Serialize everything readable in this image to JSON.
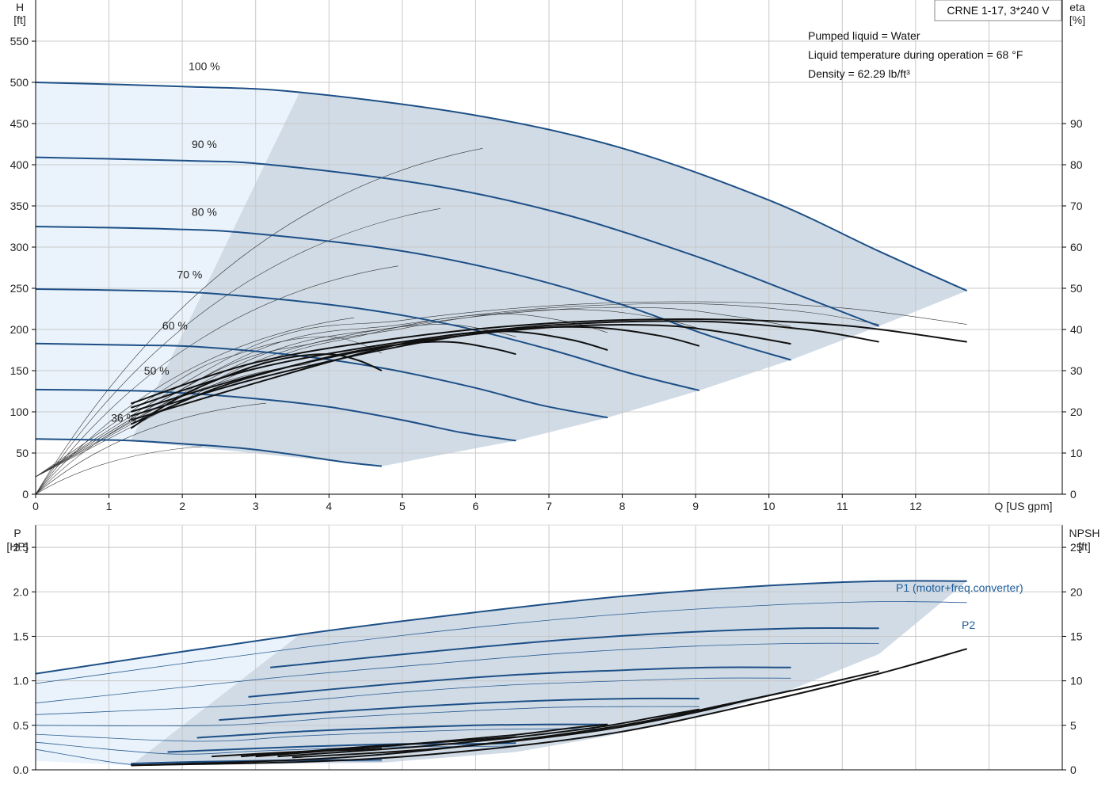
{
  "title": "CRNE 1-17, 3*240 V",
  "info_lines": [
    "Pumped liquid = Water",
    "Liquid temperature during operation = 68 °F",
    "Density = 62.29 lb/ft³"
  ],
  "colors": {
    "envelope_fill": "#d0dbe6",
    "light_fill": "#eaf3fb",
    "curve_blue": "#1d4f86",
    "eta_black": "#111111",
    "grid": "#c8c8c8"
  },
  "chart_data": [
    {
      "type": "line",
      "name": "performance",
      "xlabel": "Q [US gpm]",
      "ylabel_left": {
        "name": "H",
        "unit": "[ft]"
      },
      "ylabel_right": {
        "name": "eta",
        "unit": "[%]"
      },
      "xlim": [
        0,
        14
      ],
      "ylim_left": [
        0,
        600
      ],
      "ylim_right": [
        0,
        120
      ],
      "x_ticks": [
        "0",
        "1",
        "2",
        "3",
        "4",
        "5",
        "6",
        "7",
        "8",
        "9",
        "10",
        "11",
        "12"
      ],
      "y_ticks_left": [
        "0",
        "50",
        "100",
        "150",
        "200",
        "250",
        "300",
        "350",
        "400",
        "450",
        "500",
        "550"
      ],
      "y_ticks_right": [
        "0",
        "10",
        "20",
        "30",
        "40",
        "50",
        "60",
        "70",
        "80",
        "90"
      ],
      "grid": true,
      "speed_labels": [
        "100 %",
        "90 %",
        "80 %",
        "70 %",
        "60 %",
        "50 %",
        "36 %"
      ],
      "head_curves": [
        {
          "label": "100 %",
          "x": [
            0,
            2,
            3.6,
            6,
            8,
            10,
            11.5,
            12.7
          ],
          "y": [
            500,
            495,
            488,
            460,
            420,
            357,
            295,
            247
          ]
        },
        {
          "label": "90 %",
          "x": [
            0,
            2,
            3.2,
            5.4,
            7.2,
            9,
            10.4,
            11.5
          ],
          "y": [
            409,
            405,
            400,
            375,
            340,
            289,
            242,
            204
          ]
        },
        {
          "label": "80 %",
          "x": [
            0,
            1.8,
            2.9,
            4.8,
            6.4,
            8,
            9.2,
            10.3
          ],
          "y": [
            325,
            322,
            317,
            298,
            270,
            230,
            192,
            163
          ]
        },
        {
          "label": "70 %",
          "x": [
            0,
            1.5,
            2.5,
            4.2,
            5.6,
            7,
            8.1,
            9.05
          ],
          "y": [
            249,
            247,
            243,
            228,
            207,
            176,
            147,
            126
          ]
        },
        {
          "label": "60 %",
          "x": [
            0,
            1.3,
            2.2,
            3.6,
            4.8,
            6,
            6.9,
            7.8
          ],
          "y": [
            183,
            181,
            179,
            168,
            152,
            129,
            108,
            93
          ]
        },
        {
          "label": "50 %",
          "x": [
            0,
            1.1,
            1.8,
            3,
            4,
            5,
            5.8,
            6.55
          ],
          "y": [
            127,
            126,
            124,
            116,
            106,
            90,
            75,
            65
          ]
        },
        {
          "label": "36 %",
          "x": [
            0,
            0.8,
            1.3,
            2.2,
            2.9,
            3.6,
            4.2,
            4.72
          ],
          "y": [
            67,
            66,
            65,
            60,
            55,
            47,
            39,
            34
          ]
        }
      ],
      "efficiency_curves": [
        {
          "label": "100 %",
          "x": [
            1.3,
            3,
            5,
            7,
            9,
            11,
            12.7
          ],
          "y": [
            22,
            32,
            38,
            41.5,
            42.5,
            41,
            37
          ]
        },
        {
          "label": "90 %",
          "x": [
            1.3,
            3,
            5,
            7,
            9,
            10.5,
            11.5
          ],
          "y": [
            21,
            30.5,
            37,
            41,
            42,
            40,
            37
          ]
        },
        {
          "label": "80 %",
          "x": [
            1.3,
            3,
            5,
            7,
            8.5,
            9.5,
            10.3
          ],
          "y": [
            20,
            29,
            36.5,
            40.5,
            41,
            39,
            36.5
          ]
        },
        {
          "label": "70 %",
          "x": [
            1.3,
            3,
            5,
            6.5,
            7.6,
            8.5,
            9.05
          ],
          "y": [
            19,
            28,
            36,
            40,
            40.5,
            38.5,
            36
          ]
        },
        {
          "label": "60 %",
          "x": [
            1.3,
            3,
            4.5,
            5.6,
            6.5,
            7.3,
            7.8
          ],
          "y": [
            18,
            27,
            34.5,
            38.5,
            39.5,
            37.5,
            35
          ]
        },
        {
          "label": "50 %",
          "x": [
            1.3,
            2.5,
            3.8,
            4.8,
            5.6,
            6.2,
            6.55
          ],
          "y": [
            17,
            26,
            32.5,
            36,
            37,
            35.5,
            34
          ]
        },
        {
          "label": "36 %",
          "x": [
            1.3,
            2,
            2.8,
            3.4,
            4,
            4.4,
            4.72
          ],
          "y": [
            16,
            24,
            30,
            33,
            34,
            32.5,
            30
          ]
        }
      ]
    },
    {
      "type": "line",
      "name": "power",
      "xlim": [
        0,
        14
      ],
      "ylabel_left": {
        "name": "P",
        "unit": "[HP]"
      },
      "ylabel_right": {
        "name": "NPSH",
        "unit": "[ft]"
      },
      "ylim_left": [
        0,
        2.75
      ],
      "ylim_right": [
        0,
        27.5
      ],
      "y_ticks_left": [
        "0.0",
        "0.5",
        "1.0",
        "1.5",
        "2.0",
        "2.5"
      ],
      "y_ticks_right": [
        "0",
        "5",
        "10",
        "15",
        "20",
        "25"
      ],
      "grid": true,
      "legend": [
        "P1 (motor+freq.converter)",
        "P2"
      ],
      "p1_curves": [
        {
          "x": [
            0,
            3.6,
            6,
            8,
            10,
            11.5,
            12.7
          ],
          "y": [
            1.08,
            1.52,
            1.77,
            1.95,
            2.07,
            2.12,
            2.12
          ]
        },
        {
          "x": [
            3.2,
            5.4,
            7.2,
            9,
            10.4,
            11.5
          ],
          "y": [
            1.15,
            1.33,
            1.46,
            1.55,
            1.59,
            1.59
          ]
        },
        {
          "x": [
            2.9,
            4.8,
            6.4,
            8,
            9.2,
            10.3
          ],
          "y": [
            0.82,
            0.96,
            1.06,
            1.12,
            1.15,
            1.15
          ]
        },
        {
          "x": [
            2.5,
            4.2,
            5.6,
            7,
            8.1,
            9.05
          ],
          "y": [
            0.56,
            0.66,
            0.73,
            0.78,
            0.8,
            0.8
          ]
        },
        {
          "x": [
            2.2,
            3.6,
            4.8,
            6,
            6.9,
            7.8
          ],
          "y": [
            0.36,
            0.43,
            0.47,
            0.5,
            0.51,
            0.51
          ]
        },
        {
          "x": [
            1.8,
            3,
            4,
            5,
            5.8,
            6.55
          ],
          "y": [
            0.2,
            0.24,
            0.27,
            0.29,
            0.29,
            0.3
          ]
        },
        {
          "x": [
            1.3,
            2.2,
            2.9,
            3.6,
            4.2,
            4.72
          ],
          "y": [
            0.07,
            0.09,
            0.1,
            0.11,
            0.11,
            0.12
          ]
        }
      ],
      "p2_curves": [
        {
          "x": [
            0,
            3.6,
            6,
            8,
            10,
            11.5,
            12.7
          ],
          "y": [
            0.97,
            1.37,
            1.6,
            1.75,
            1.85,
            1.89,
            1.88
          ]
        },
        {
          "x": [
            0,
            3.2,
            5.4,
            7.2,
            9,
            10.4,
            11.5
          ],
          "y": [
            0.75,
            1.03,
            1.19,
            1.31,
            1.39,
            1.42,
            1.42
          ]
        },
        {
          "x": [
            0,
            2.9,
            4.8,
            6.4,
            8,
            9.2,
            10.3
          ],
          "y": [
            0.62,
            0.73,
            0.86,
            0.95,
            1.0,
            1.03,
            1.03
          ]
        },
        {
          "x": [
            0,
            2.5,
            4.2,
            5.6,
            7,
            8.1,
            9.05
          ],
          "y": [
            0.5,
            0.5,
            0.59,
            0.65,
            0.7,
            0.71,
            0.71
          ]
        },
        {
          "x": [
            0,
            2.2,
            3.6,
            4.8,
            6,
            6.9,
            7.8
          ],
          "y": [
            0.4,
            0.32,
            0.38,
            0.42,
            0.45,
            0.46,
            0.46
          ]
        },
        {
          "x": [
            0,
            1.8,
            3,
            4,
            5,
            5.8,
            6.55
          ],
          "y": [
            0.31,
            0.18,
            0.21,
            0.24,
            0.26,
            0.26,
            0.27
          ]
        },
        {
          "x": [
            0,
            1.3,
            2.2,
            2.9,
            3.6,
            4.2,
            4.72
          ],
          "y": [
            0.23,
            0.06,
            0.08,
            0.09,
            0.1,
            0.1,
            0.1
          ]
        }
      ],
      "npsh_curves": [
        {
          "x": [
            1.3,
            4,
            6,
            8,
            10,
            11.5,
            12.7
          ],
          "y": [
            0.5,
            1.0,
            2.2,
            4.3,
            7.8,
            10.8,
            13.6
          ]
        },
        {
          "x": [
            1.3,
            4,
            6,
            8,
            9.5,
            10.6,
            11.5
          ],
          "y": [
            0.5,
            1.3,
            2.8,
            5.0,
            7.5,
            9.4,
            11.1
          ]
        },
        {
          "x": [
            3.5,
            5.5,
            7.5,
            8.8,
            9.7,
            10.3
          ],
          "y": [
            1.4,
            2.4,
            4.2,
            6.1,
            7.8,
            8.9
          ]
        },
        {
          "x": [
            3.3,
            5.5,
            7.5,
            8.5,
            9.05
          ],
          "y": [
            1.5,
            2.8,
            4.6,
            6.0,
            6.8
          ]
        },
        {
          "x": [
            3.0,
            5.0,
            6.5,
            7.3,
            7.8
          ],
          "y": [
            1.5,
            2.8,
            3.9,
            4.7,
            5.1
          ]
        },
        {
          "x": [
            2.8,
            4.5,
            5.7,
            6.2,
            6.55
          ],
          "y": [
            1.5,
            2.6,
            3.2,
            3.5,
            3.7
          ]
        },
        {
          "x": [
            2.4,
            3.5,
            4.2,
            4.5,
            4.72
          ],
          "y": [
            1.5,
            2.0,
            2.2,
            2.3,
            2.4
          ]
        }
      ]
    }
  ]
}
